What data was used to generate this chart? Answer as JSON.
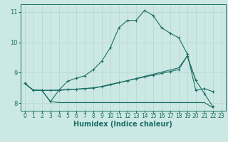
{
  "xlabel": "Humidex (Indice chaleur)",
  "bg_color": "#cce8e4",
  "line_color": "#1a6e64",
  "grid_color": "#b8d8d4",
  "xlim": [
    -0.5,
    23.5
  ],
  "ylim": [
    7.75,
    11.25
  ],
  "yticks": [
    8,
    9,
    10,
    11
  ],
  "xticks": [
    0,
    1,
    2,
    3,
    4,
    5,
    6,
    7,
    8,
    9,
    10,
    11,
    12,
    13,
    14,
    15,
    16,
    17,
    18,
    19,
    20,
    21,
    22,
    23
  ],
  "lines": [
    {
      "x": [
        0,
        1,
        2,
        3,
        4,
        5,
        6,
        7,
        8,
        9,
        10,
        11,
        12,
        13,
        14,
        15,
        16,
        17,
        18,
        19,
        20,
        21,
        22
      ],
      "y": [
        8.65,
        8.42,
        8.42,
        8.05,
        8.43,
        8.72,
        8.82,
        8.9,
        9.1,
        9.38,
        9.82,
        10.48,
        10.72,
        10.72,
        11.05,
        10.88,
        10.48,
        10.3,
        10.15,
        9.62,
        8.42,
        8.48,
        8.38
      ],
      "marker": true
    },
    {
      "x": [
        0,
        1,
        2,
        3,
        4,
        5,
        6,
        7,
        8,
        9,
        10,
        11,
        12,
        13,
        14,
        15,
        16,
        17,
        18,
        19,
        20,
        21,
        22
      ],
      "y": [
        8.65,
        8.42,
        8.42,
        8.42,
        8.43,
        8.45,
        8.46,
        8.48,
        8.5,
        8.55,
        8.62,
        8.68,
        8.74,
        8.8,
        8.86,
        8.92,
        8.98,
        9.04,
        9.1,
        9.55,
        8.75,
        8.32,
        7.88
      ],
      "marker": true
    },
    {
      "x": [
        0,
        1,
        2,
        3,
        4,
        5,
        6,
        7,
        8,
        9,
        10,
        11,
        12,
        13,
        14,
        15,
        16,
        17,
        18,
        19,
        20
      ],
      "y": [
        8.65,
        8.42,
        8.42,
        8.42,
        8.42,
        8.44,
        8.46,
        8.48,
        8.5,
        8.54,
        8.6,
        8.67,
        8.74,
        8.81,
        8.88,
        8.95,
        9.02,
        9.09,
        9.16,
        9.55,
        8.75
      ],
      "marker": false
    },
    {
      "x": [
        0,
        1,
        2,
        3,
        4,
        5,
        6,
        7,
        8,
        9,
        10,
        11,
        12,
        13,
        14,
        15,
        16,
        17,
        18,
        19,
        20,
        21,
        22
      ],
      "y": [
        8.65,
        8.42,
        8.42,
        8.05,
        8.02,
        8.02,
        8.02,
        8.02,
        8.02,
        8.02,
        8.02,
        8.02,
        8.02,
        8.02,
        8.02,
        8.02,
        8.02,
        8.02,
        8.02,
        8.02,
        8.02,
        8.02,
        7.85
      ],
      "marker": false
    }
  ]
}
